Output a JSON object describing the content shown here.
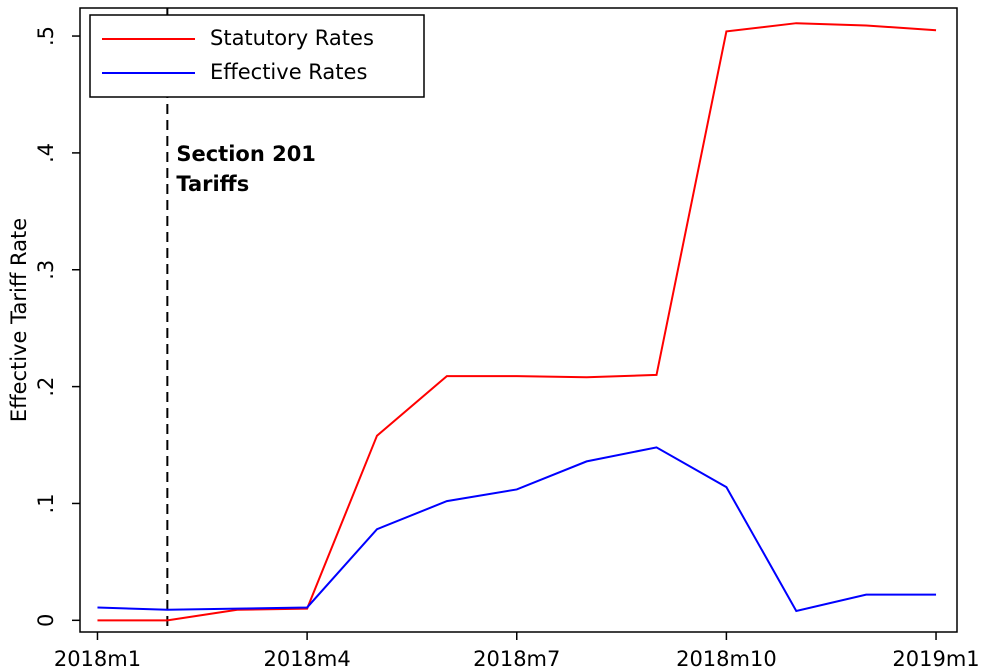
{
  "chart_data": {
    "type": "line",
    "y_label": "Effective Tariff Rate",
    "x": [
      0,
      1,
      2,
      3,
      4,
      5,
      6,
      7,
      8,
      9,
      10,
      11,
      12
    ],
    "series": [
      {
        "name": "Statutory Rates",
        "color": "#ff0000",
        "values": [
          0,
          0,
          0.009,
          0.01,
          0.158,
          0.209,
          0.209,
          0.208,
          0.21,
          0.504,
          0.511,
          0.509,
          0.505
        ]
      },
      {
        "name": "Effective Rates",
        "color": "#0000ff",
        "values": [
          0.011,
          0.009,
          0.01,
          0.011,
          0.078,
          0.102,
          0.112,
          0.136,
          0.148,
          0.114,
          0.008,
          0.022,
          0.022
        ]
      }
    ],
    "xlim": [
      -0.25,
      12.3
    ],
    "xticks": [
      {
        "value": 0,
        "label": "2018m1"
      },
      {
        "value": 3,
        "label": "2018m4"
      },
      {
        "value": 6,
        "label": "2018m7"
      },
      {
        "value": 9,
        "label": "2018m10"
      },
      {
        "value": 12,
        "label": "2019m1"
      }
    ],
    "ylim": [
      -0.01,
      0.524
    ],
    "yticks": [
      0,
      {
        "value": 0.1,
        "label": ".1"
      },
      {
        "value": 0.2,
        "label": ".2"
      },
      {
        "value": 0.3,
        "label": ".3"
      },
      {
        "value": 0.4,
        "label": ".4"
      },
      {
        "value": 0.5,
        "label": ".5"
      }
    ],
    "vline": 1,
    "annotation_lines": [
      "Section 201",
      "Tariffs"
    ],
    "legend": "top-left"
  }
}
